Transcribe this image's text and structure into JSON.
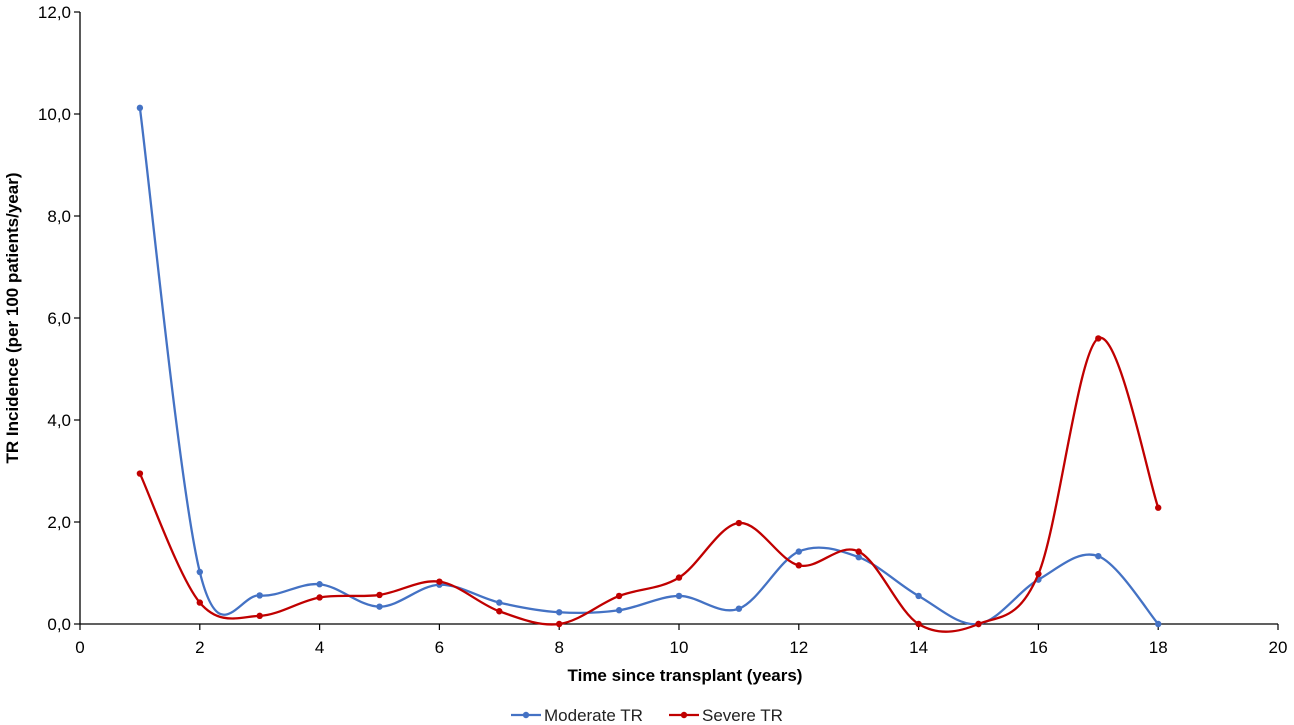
{
  "chart_data": {
    "type": "line",
    "title": "",
    "xlabel": "Time since transplant  (years)",
    "ylabel": "TR Incidence (per 100 patients/year)",
    "xlim": [
      0,
      20
    ],
    "ylim": [
      0,
      12
    ],
    "x_ticks": [
      "0",
      "2",
      "4",
      "6",
      "8",
      "10",
      "12",
      "14",
      "16",
      "18",
      "20"
    ],
    "y_ticks": [
      "0,0",
      "2,0",
      "4,0",
      "6,0",
      "8,0",
      "10,0",
      "12,0"
    ],
    "grid": false,
    "legend_position": "bottom",
    "series": [
      {
        "name": "Moderate TR",
        "color": "#4472C4",
        "x": [
          1,
          2,
          3,
          4,
          5,
          6,
          7,
          8,
          9,
          10,
          11,
          12,
          13,
          14,
          15,
          16,
          17,
          18
        ],
        "values": [
          10.12,
          1.02,
          0.56,
          0.78,
          0.34,
          0.77,
          0.42,
          0.23,
          0.27,
          0.55,
          0.3,
          1.42,
          1.31,
          0.55,
          0.0,
          0.87,
          1.33,
          0.0
        ]
      },
      {
        "name": "Severe TR",
        "color": "#C00000",
        "x": [
          1,
          2,
          3,
          4,
          5,
          6,
          7,
          8,
          9,
          10,
          11,
          12,
          13,
          14,
          15,
          16,
          17,
          18
        ],
        "values": [
          2.95,
          0.42,
          0.16,
          0.52,
          0.57,
          0.83,
          0.25,
          0.0,
          0.55,
          0.91,
          1.98,
          1.15,
          1.42,
          0.0,
          0.0,
          0.98,
          5.6,
          2.28
        ]
      }
    ]
  }
}
